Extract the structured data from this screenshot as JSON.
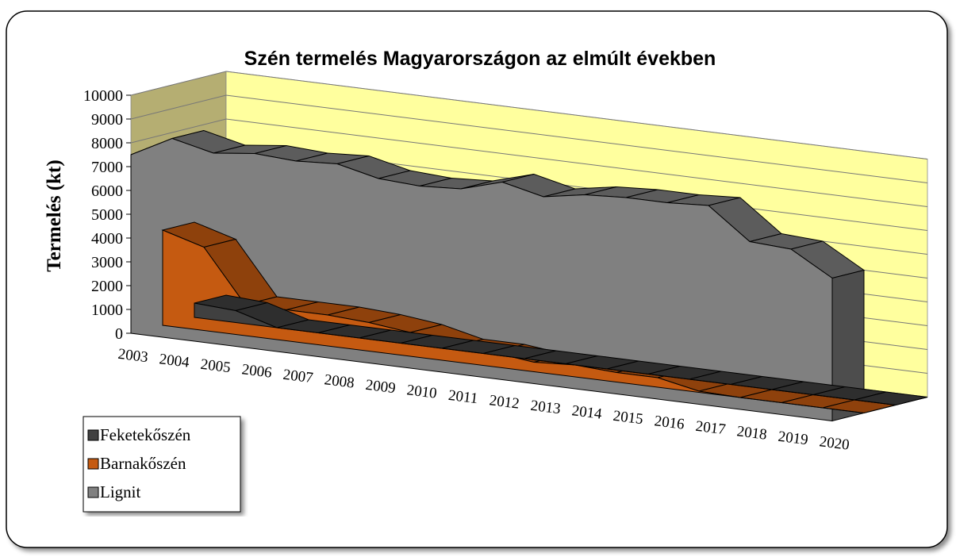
{
  "chart_data": {
    "type": "area3d",
    "title": "Szén termelés Magyarországon az elmúlt években",
    "y_label": "Termelés (kt)",
    "categories": [
      "2003",
      "2004",
      "2005",
      "2006",
      "2007",
      "2008",
      "2009",
      "2010",
      "2011",
      "2012",
      "2013",
      "2014",
      "2015",
      "2016",
      "2017",
      "2018",
      "2019",
      "2020"
    ],
    "series": [
      {
        "name": "Feketekőszén",
        "color": "#404040",
        "values": [
          600,
          500,
          0,
          0,
          0,
          0,
          0,
          0,
          0,
          0,
          0,
          0,
          0,
          0,
          0,
          0,
          0,
          0
        ]
      },
      {
        "name": "Barnakőszén",
        "color": "#c55a11",
        "values": [
          4000,
          3500,
          1300,
          1300,
          1300,
          1200,
          1000,
          600,
          600,
          400,
          500,
          400,
          400,
          50,
          0,
          0,
          0,
          0
        ]
      },
      {
        "name": "Lignit",
        "color": "#808080",
        "values": [
          7500,
          8400,
          8000,
          8200,
          8100,
          8200,
          7800,
          7700,
          7800,
          8300,
          7900,
          8200,
          8300,
          8300,
          8400,
          7100,
          7000,
          6000
        ]
      }
    ],
    "ylim": [
      0,
      10000
    ],
    "yticks": [
      0,
      1000,
      2000,
      3000,
      4000,
      5000,
      6000,
      7000,
      8000,
      9000,
      10000
    ],
    "grid": true,
    "legend": "bottom-left"
  }
}
